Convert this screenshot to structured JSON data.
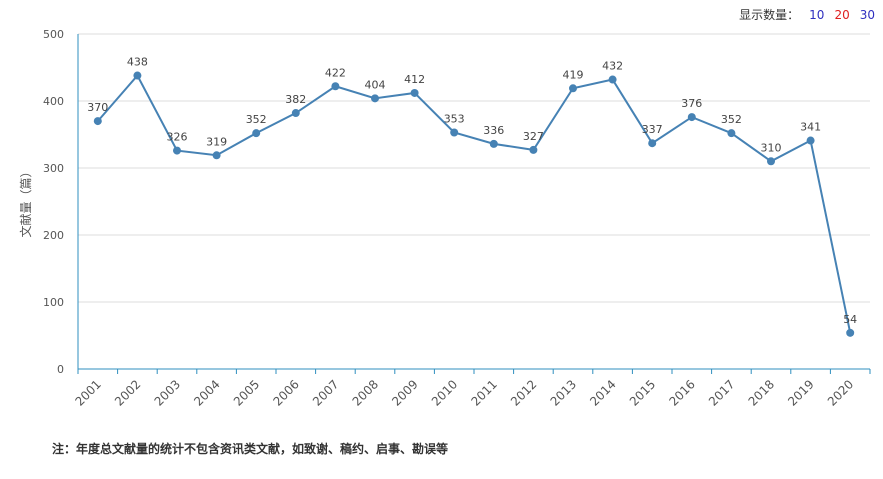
{
  "controls": {
    "label": "显示数量：",
    "options": [
      "10",
      "20",
      "30"
    ]
  },
  "note": "注：年度总文献量的统计不包含资讯类文献，如致谢、稿约、启事、勘误等",
  "colors": {
    "line": "#4682b4",
    "axis": "#2f8fbf",
    "grid": "#dcdcdc",
    "text": "#555555"
  },
  "chart_data": {
    "type": "line",
    "title": "",
    "xlabel": "",
    "ylabel": "文献量（篇）",
    "ylim": [
      0,
      500
    ],
    "yticks": [
      0,
      100,
      200,
      300,
      400,
      500
    ],
    "grid": true,
    "categories": [
      "2001",
      "2002",
      "2003",
      "2004",
      "2005",
      "2006",
      "2007",
      "2008",
      "2009",
      "2010",
      "2011",
      "2012",
      "2013",
      "2014",
      "2015",
      "2016",
      "2017",
      "2018",
      "2019",
      "2020"
    ],
    "series": [
      {
        "values": [
          370,
          438,
          326,
          319,
          352,
          382,
          422,
          404,
          412,
          353,
          336,
          327,
          419,
          432,
          337,
          376,
          352,
          310,
          341,
          54
        ]
      }
    ]
  }
}
